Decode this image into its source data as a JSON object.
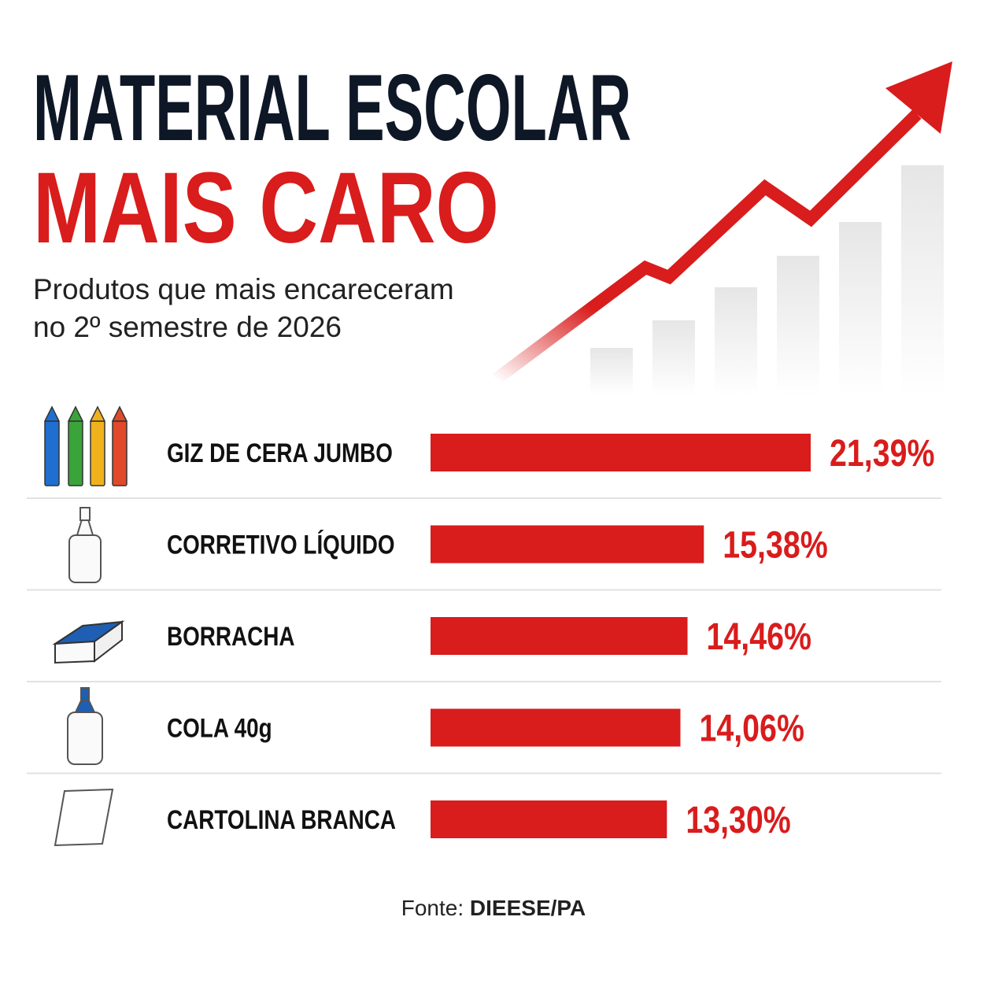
{
  "chart_data": {
    "type": "bar",
    "title": "MATERIAL ESCOLAR",
    "title_highlight": "MAIS CARO",
    "subtitle": [
      "Produtos que mais encareceram",
      "no 2º semestre de 2026"
    ],
    "categories": [
      "GIZ DE CERA JUMBO",
      "CORRETIVO LÍQUIDO",
      "BORRACHA",
      "COLA 40g",
      "CARTOLINA BRANCA"
    ],
    "values": [
      21.39,
      15.38,
      14.46,
      14.06,
      13.3
    ],
    "value_labels": [
      "21,39%",
      "15,38%",
      "14,46%",
      "14,06%",
      "13,30%"
    ],
    "color": "#d91c1c",
    "source_label": "Fonte:",
    "source": "DIEESE/PA"
  }
}
